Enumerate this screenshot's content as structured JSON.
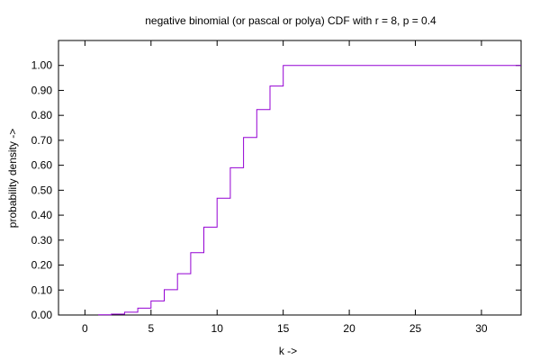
{
  "chart_data": {
    "type": "line",
    "style": "step",
    "title": "negative binomial (or pascal or polya) CDF with r = 8, p = 0.4",
    "xlabel": "k ->",
    "ylabel": "probability density ->",
    "xlim": [
      -2,
      33
    ],
    "ylim": [
      0,
      1.0999
    ],
    "xticks": [
      0,
      5,
      10,
      15,
      20,
      25,
      30
    ],
    "yticks": [
      0.0,
      0.1,
      0.2,
      0.3,
      0.4,
      0.5,
      0.6,
      0.7,
      0.8,
      0.9,
      1.0
    ],
    "xtick_labels": [
      "0",
      "5",
      "10",
      "15",
      "20",
      "25",
      "30"
    ],
    "ytick_labels": [
      "0.00",
      "0.10",
      "0.20",
      "0.30",
      "0.40",
      "0.50",
      "0.60",
      "0.70",
      "0.80",
      "0.90",
      "1.00"
    ],
    "grid": false,
    "series_color": "#9400D3",
    "series": [
      {
        "x": [
          1,
          2,
          3,
          4,
          5,
          6,
          7,
          8,
          9,
          10,
          11,
          12,
          13,
          14,
          15,
          16,
          17,
          18,
          19,
          20,
          21,
          22,
          23,
          24,
          25,
          26,
          27,
          28,
          29,
          30,
          31,
          32,
          33
        ],
        "values": [
          0.0007,
          0.0036,
          0.0112,
          0.0274,
          0.0563,
          0.1014,
          0.1657,
          0.25,
          0.3521,
          0.4677,
          0.5901,
          0.7114,
          0.8232,
          0.9175,
          1.0,
          1.0,
          1.0,
          1.0,
          1.0,
          1.0,
          1.0,
          1.0,
          1.0,
          1.0,
          1.0,
          1.0,
          1.0,
          1.0,
          1.0,
          1.0,
          1.0,
          1.0,
          1.0
        ]
      }
    ]
  }
}
